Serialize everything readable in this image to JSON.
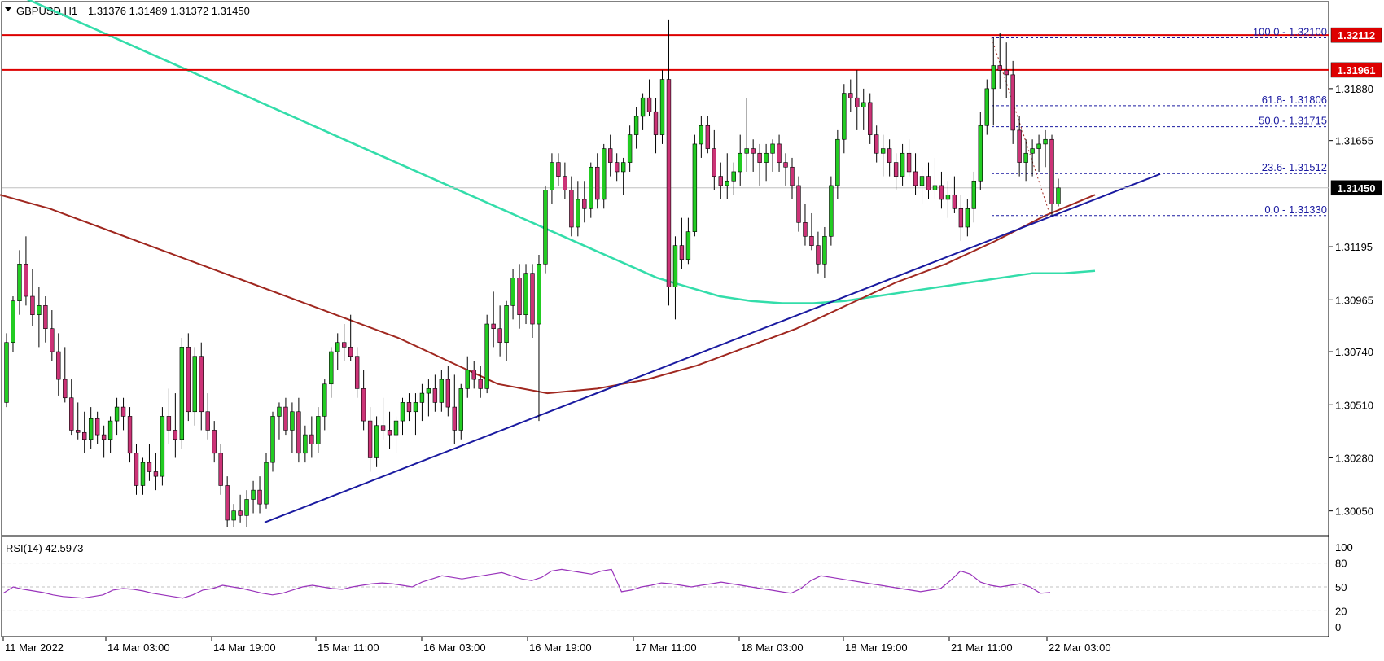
{
  "header": {
    "symbol": "GBPUSD,H1",
    "ohlc": "1.31376 1.31489 1.31372 1.31450"
  },
  "rsi_panel": {
    "label": "RSI(14) 42.5973",
    "levels": [
      "100",
      "80",
      "50",
      "20",
      "0"
    ]
  },
  "price_tags": {
    "last": "1.31450",
    "resistance_1": "1.32112",
    "resistance_2": "1.31961"
  },
  "fib_labels": [
    "100.0 - 1.32100",
    "61.8- 1.31806",
    "50.0 - 1.31715",
    "23.6- 1.31512",
    "0.0 - 1.31330"
  ],
  "colors": {
    "bull_candle": "#22cc22",
    "bear_candle": "#cc3377",
    "ma_fast": "#33ddaa",
    "ma_slow": "#a02820",
    "trendline": "#1a1aa0",
    "resistance": "#dd0000",
    "rsi": "#9933bb",
    "fib": "#1a1aa0"
  },
  "chart_data": [
    {
      "type": "candlestick",
      "title": "GBPUSD,H1",
      "y_ticks": [
        "1.31880",
        "1.31655",
        "1.31195",
        "1.30965",
        "1.30740",
        "1.30510",
        "1.30280",
        "1.30050"
      ],
      "x_ticks": [
        "11 Mar 2022",
        "14 Mar 03:00",
        "14 Mar 19:00",
        "15 Mar 11:00",
        "16 Mar 03:00",
        "16 Mar 19:00",
        "17 Mar 11:00",
        "18 Mar 03:00",
        "18 Mar 19:00",
        "21 Mar 11:00",
        "22 Mar 03:00"
      ],
      "ylim": [
        1.2995,
        1.3225
      ],
      "candles": [
        [
          1.3052,
          1.3082,
          1.305,
          1.3078
        ],
        [
          1.3078,
          1.3098,
          1.3074,
          1.3096
        ],
        [
          1.3096,
          1.3118,
          1.309,
          1.3112
        ],
        [
          1.3112,
          1.3124,
          1.3094,
          1.3098
        ],
        [
          1.3098,
          1.311,
          1.3085,
          1.309
        ],
        [
          1.309,
          1.3102,
          1.3076,
          1.3094
        ],
        [
          1.3094,
          1.3098,
          1.3078,
          1.3084
        ],
        [
          1.3084,
          1.3092,
          1.307,
          1.3074
        ],
        [
          1.3074,
          1.3082,
          1.3055,
          1.3062
        ],
        [
          1.3062,
          1.3076,
          1.3052,
          1.3054
        ],
        [
          1.3054,
          1.3062,
          1.3038,
          1.304
        ],
        [
          1.304,
          1.3052,
          1.3036,
          1.3039
        ],
        [
          1.3039,
          1.3048,
          1.303,
          1.3036
        ],
        [
          1.3036,
          1.305,
          1.3032,
          1.3045
        ],
        [
          1.3045,
          1.3048,
          1.3034,
          1.3038
        ],
        [
          1.3038,
          1.3042,
          1.3028,
          1.3036
        ],
        [
          1.3036,
          1.3046,
          1.303,
          1.3044
        ],
        [
          1.3044,
          1.3054,
          1.3038,
          1.305
        ],
        [
          1.305,
          1.3054,
          1.304,
          1.3046
        ],
        [
          1.3046,
          1.305,
          1.3026,
          1.303
        ],
        [
          1.303,
          1.3034,
          1.3012,
          1.3016
        ],
        [
          1.3016,
          1.3028,
          1.3012,
          1.3026
        ],
        [
          1.3026,
          1.3034,
          1.3018,
          1.3022
        ],
        [
          1.3022,
          1.303,
          1.3014,
          1.302
        ],
        [
          1.302,
          1.305,
          1.3016,
          1.3046
        ],
        [
          1.3046,
          1.3058,
          1.3034,
          1.304
        ],
        [
          1.304,
          1.3056,
          1.3028,
          1.3036
        ],
        [
          1.3036,
          1.308,
          1.3032,
          1.3076
        ],
        [
          1.3076,
          1.3082,
          1.3044,
          1.3048
        ],
        [
          1.3048,
          1.3076,
          1.3042,
          1.3072
        ],
        [
          1.3072,
          1.3078,
          1.304,
          1.3048
        ],
        [
          1.3048,
          1.3056,
          1.3036,
          1.304
        ],
        [
          1.304,
          1.3044,
          1.3026,
          1.303
        ],
        [
          1.303,
          1.3034,
          1.3012,
          1.3016
        ],
        [
          1.3016,
          1.302,
          1.2998,
          1.3001
        ],
        [
          1.3001,
          1.3008,
          1.2998,
          1.3005
        ],
        [
          1.3005,
          1.3012,
          1.3,
          1.3003
        ],
        [
          1.3003,
          1.3014,
          1.2998,
          1.301
        ],
        [
          1.301,
          1.3018,
          1.3004,
          1.3014
        ],
        [
          1.3014,
          1.302,
          1.3004,
          1.3008
        ],
        [
          1.3008,
          1.303,
          1.3006,
          1.3026
        ],
        [
          1.3026,
          1.3048,
          1.3022,
          1.3046
        ],
        [
          1.3046,
          1.3052,
          1.3036,
          1.305
        ],
        [
          1.305,
          1.3054,
          1.3038,
          1.304
        ],
        [
          1.304,
          1.3052,
          1.303,
          1.3048
        ],
        [
          1.3048,
          1.3054,
          1.3026,
          1.303
        ],
        [
          1.303,
          1.3042,
          1.3026,
          1.3038
        ],
        [
          1.3038,
          1.3046,
          1.3028,
          1.3034
        ],
        [
          1.3034,
          1.305,
          1.303,
          1.3046
        ],
        [
          1.3046,
          1.3062,
          1.304,
          1.306
        ],
        [
          1.306,
          1.3076,
          1.3054,
          1.3074
        ],
        [
          1.3074,
          1.3082,
          1.3066,
          1.3078
        ],
        [
          1.3078,
          1.3086,
          1.307,
          1.3076
        ],
        [
          1.3076,
          1.309,
          1.307,
          1.3072
        ],
        [
          1.3072,
          1.3076,
          1.3054,
          1.3058
        ],
        [
          1.3058,
          1.3066,
          1.304,
          1.3044
        ],
        [
          1.3044,
          1.305,
          1.3022,
          1.3028
        ],
        [
          1.3028,
          1.3046,
          1.3024,
          1.3042
        ],
        [
          1.3042,
          1.3054,
          1.3036,
          1.304
        ],
        [
          1.304,
          1.3048,
          1.3032,
          1.3038
        ],
        [
          1.3038,
          1.3046,
          1.303,
          1.3044
        ],
        [
          1.3044,
          1.3054,
          1.3038,
          1.3052
        ],
        [
          1.3052,
          1.3056,
          1.3044,
          1.3048
        ],
        [
          1.3048,
          1.3056,
          1.3038,
          1.3052
        ],
        [
          1.3052,
          1.306,
          1.3044,
          1.3056
        ],
        [
          1.3056,
          1.3062,
          1.3046,
          1.3058
        ],
        [
          1.3058,
          1.3064,
          1.3048,
          1.3052
        ],
        [
          1.3052,
          1.3066,
          1.3048,
          1.3062
        ],
        [
          1.3062,
          1.3068,
          1.3046,
          1.305
        ],
        [
          1.305,
          1.3064,
          1.3034,
          1.304
        ],
        [
          1.304,
          1.306,
          1.3036,
          1.3058
        ],
        [
          1.3058,
          1.3072,
          1.3054,
          1.3066
        ],
        [
          1.3066,
          1.307,
          1.3058,
          1.3062
        ],
        [
          1.3062,
          1.3068,
          1.3054,
          1.3058
        ],
        [
          1.3058,
          1.309,
          1.3056,
          1.3086
        ],
        [
          1.3086,
          1.31,
          1.3076,
          1.3084
        ],
        [
          1.3084,
          1.3094,
          1.3072,
          1.3078
        ],
        [
          1.3078,
          1.3096,
          1.307,
          1.3094
        ],
        [
          1.3094,
          1.311,
          1.3088,
          1.3106
        ],
        [
          1.3106,
          1.3112,
          1.3084,
          1.309
        ],
        [
          1.309,
          1.3112,
          1.3086,
          1.3108
        ],
        [
          1.3108,
          1.3112,
          1.308,
          1.3086
        ],
        [
          1.3086,
          1.3116,
          1.3044,
          1.3112
        ],
        [
          1.3112,
          1.3146,
          1.3108,
          1.3144
        ],
        [
          1.3144,
          1.316,
          1.3138,
          1.3156
        ],
        [
          1.3156,
          1.316,
          1.3146,
          1.315
        ],
        [
          1.315,
          1.3156,
          1.314,
          1.3144
        ],
        [
          1.3144,
          1.315,
          1.3124,
          1.3128
        ],
        [
          1.3128,
          1.3148,
          1.3124,
          1.314
        ],
        [
          1.314,
          1.3148,
          1.313,
          1.3136
        ],
        [
          1.3136,
          1.3156,
          1.3132,
          1.3154
        ],
        [
          1.3154,
          1.316,
          1.3136,
          1.314
        ],
        [
          1.314,
          1.3164,
          1.3136,
          1.3162
        ],
        [
          1.3162,
          1.3168,
          1.315,
          1.3156
        ],
        [
          1.3156,
          1.316,
          1.3148,
          1.3152
        ],
        [
          1.3152,
          1.3158,
          1.3142,
          1.3156
        ],
        [
          1.3156,
          1.3172,
          1.3152,
          1.3168
        ],
        [
          1.3168,
          1.318,
          1.3162,
          1.3176
        ],
        [
          1.3176,
          1.3186,
          1.317,
          1.3184
        ],
        [
          1.3184,
          1.3192,
          1.3176,
          1.3178
        ],
        [
          1.3178,
          1.3184,
          1.316,
          1.3168
        ],
        [
          1.3168,
          1.3196,
          1.3164,
          1.3192
        ],
        [
          1.3192,
          1.3218,
          1.3094,
          1.3102
        ],
        [
          1.3102,
          1.3124,
          1.3088,
          1.312
        ],
        [
          1.312,
          1.3132,
          1.311,
          1.3114
        ],
        [
          1.3114,
          1.3132,
          1.3112,
          1.3126
        ],
        [
          1.3126,
          1.3168,
          1.3124,
          1.3164
        ],
        [
          1.3164,
          1.3176,
          1.3158,
          1.3172
        ],
        [
          1.3172,
          1.3176,
          1.316,
          1.3162
        ],
        [
          1.3162,
          1.317,
          1.3144,
          1.315
        ],
        [
          1.315,
          1.3156,
          1.314,
          1.3146
        ],
        [
          1.3146,
          1.316,
          1.314,
          1.3148
        ],
        [
          1.3148,
          1.3156,
          1.3142,
          1.3152
        ],
        [
          1.3152,
          1.3168,
          1.3146,
          1.316
        ],
        [
          1.316,
          1.3184,
          1.3152,
          1.3162
        ],
        [
          1.3162,
          1.3166,
          1.3152,
          1.316
        ],
        [
          1.316,
          1.3164,
          1.3146,
          1.3156
        ],
        [
          1.3156,
          1.3164,
          1.3148,
          1.316
        ],
        [
          1.316,
          1.3166,
          1.3152,
          1.3164
        ],
        [
          1.3164,
          1.3168,
          1.3152,
          1.3156
        ],
        [
          1.3156,
          1.316,
          1.3146,
          1.3154
        ],
        [
          1.3154,
          1.3158,
          1.314,
          1.3146
        ],
        [
          1.3146,
          1.315,
          1.3126,
          1.313
        ],
        [
          1.313,
          1.3138,
          1.312,
          1.3124
        ],
        [
          1.3124,
          1.3134,
          1.3118,
          1.312
        ],
        [
          1.312,
          1.3126,
          1.3108,
          1.3112
        ],
        [
          1.3112,
          1.3128,
          1.3106,
          1.3124
        ],
        [
          1.3124,
          1.315,
          1.312,
          1.3146
        ],
        [
          1.3146,
          1.317,
          1.314,
          1.3166
        ],
        [
          1.3166,
          1.319,
          1.316,
          1.3186
        ],
        [
          1.3186,
          1.3192,
          1.3178,
          1.3184
        ],
        [
          1.3184,
          1.3196,
          1.317,
          1.318
        ],
        [
          1.318,
          1.3188,
          1.317,
          1.3182
        ],
        [
          1.3182,
          1.3186,
          1.3164,
          1.3168
        ],
        [
          1.3168,
          1.3172,
          1.3156,
          1.316
        ],
        [
          1.316,
          1.3168,
          1.315,
          1.3162
        ],
        [
          1.3162,
          1.3166,
          1.315,
          1.3156
        ],
        [
          1.3156,
          1.316,
          1.3144,
          1.315
        ],
        [
          1.315,
          1.3164,
          1.3146,
          1.316
        ],
        [
          1.316,
          1.3166,
          1.315,
          1.3152
        ],
        [
          1.3152,
          1.316,
          1.3142,
          1.3146
        ],
        [
          1.3146,
          1.3154,
          1.3138,
          1.315
        ],
        [
          1.315,
          1.3156,
          1.314,
          1.3144
        ],
        [
          1.3144,
          1.3158,
          1.314,
          1.3146
        ],
        [
          1.3146,
          1.3152,
          1.3136,
          1.314
        ],
        [
          1.314,
          1.3148,
          1.3132,
          1.3142
        ],
        [
          1.3142,
          1.315,
          1.3134,
          1.3136
        ],
        [
          1.3136,
          1.3142,
          1.3122,
          1.3128
        ],
        [
          1.3128,
          1.314,
          1.3124,
          1.3136
        ],
        [
          1.3136,
          1.3152,
          1.313,
          1.3148
        ],
        [
          1.3148,
          1.3178,
          1.3144,
          1.3172
        ],
        [
          1.3172,
          1.3192,
          1.3168,
          1.3188
        ],
        [
          1.3188,
          1.321,
          1.3172,
          1.3198
        ],
        [
          1.3198,
          1.3212,
          1.3188,
          1.3196
        ],
        [
          1.3196,
          1.3208,
          1.3184,
          1.3194
        ],
        [
          1.3194,
          1.32,
          1.3164,
          1.317
        ],
        [
          1.317,
          1.3176,
          1.315,
          1.3156
        ],
        [
          1.3156,
          1.3166,
          1.3148,
          1.316
        ],
        [
          1.316,
          1.3166,
          1.315,
          1.3162
        ],
        [
          1.3162,
          1.3168,
          1.3152,
          1.3164
        ],
        [
          1.3164,
          1.317,
          1.3154,
          1.3166
        ],
        [
          1.3166,
          1.3168,
          1.3133,
          1.3138
        ],
        [
          1.3138,
          1.3149,
          1.3137,
          1.3145
        ]
      ],
      "ma_fast_values": [
        1.3232,
        1.3226,
        1.322,
        1.3214,
        1.3208,
        1.3202,
        1.3196,
        1.319,
        1.3184,
        1.3178,
        1.3172,
        1.3166,
        1.316,
        1.3154,
        1.3148,
        1.3142,
        1.3136,
        1.313,
        1.3124,
        1.3118,
        1.3112,
        1.3106,
        1.3102,
        1.3098,
        1.3096,
        1.3095,
        1.3095,
        1.3096,
        1.3098,
        1.31,
        1.3102,
        1.3104,
        1.3106,
        1.3108,
        1.3108,
        1.3109
      ],
      "ma_slow_values": [
        1.3142,
        1.3136,
        1.3128,
        1.312,
        1.3112,
        1.3104,
        1.3096,
        1.3088,
        1.308,
        1.307,
        1.306,
        1.3056,
        1.3058,
        1.3062,
        1.3068,
        1.3076,
        1.3084,
        1.3094,
        1.3104,
        1.3112,
        1.3122,
        1.3133,
        1.3142
      ],
      "trendline": {
        "start": [
          1.3
        ],
        "end": [
          1.3151
        ]
      },
      "resistance_levels": [
        1.32112,
        1.31961
      ],
      "last_price": 1.3145,
      "fibonacci": [
        {
          "level": "100.0",
          "price": 1.321
        },
        {
          "level": "61.8",
          "price": 1.31806
        },
        {
          "level": "50.0",
          "price": 1.31715
        },
        {
          "level": "23.6",
          "price": 1.31512
        },
        {
          "level": "0.0",
          "price": 1.3133
        }
      ]
    },
    {
      "type": "line",
      "title": "RSI(14) 42.5973",
      "ylim": [
        0,
        100
      ],
      "y_ticks": [
        "100",
        "80",
        "50",
        "20",
        "0"
      ],
      "values": [
        42,
        50,
        47,
        45,
        43,
        40,
        38,
        37,
        36,
        38,
        40,
        46,
        48,
        47,
        45,
        42,
        40,
        38,
        36,
        40,
        46,
        48,
        52,
        50,
        48,
        45,
        42,
        40,
        42,
        46,
        50,
        52,
        50,
        48,
        47,
        50,
        52,
        54,
        55,
        54,
        52,
        50,
        56,
        60,
        64,
        62,
        60,
        62,
        64,
        66,
        68,
        64,
        60,
        58,
        62,
        70,
        72,
        70,
        68,
        66,
        70,
        72,
        44,
        46,
        50,
        52,
        55,
        54,
        52,
        50,
        52,
        54,
        56,
        54,
        52,
        50,
        48,
        46,
        44,
        42,
        48,
        58,
        64,
        62,
        60,
        58,
        56,
        54,
        52,
        50,
        48,
        46,
        44,
        46,
        48,
        58,
        70,
        66,
        56,
        52,
        50,
        52,
        54,
        50,
        42,
        43
      ]
    }
  ]
}
